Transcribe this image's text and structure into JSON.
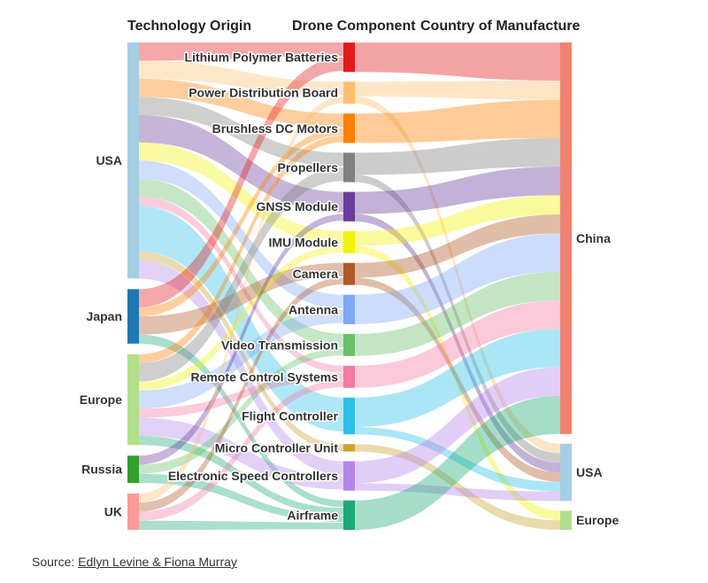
{
  "chart_data": {
    "type": "sankey",
    "columns": [
      "Technology Origin",
      "Drone Component",
      "Country of Manufacture"
    ],
    "origins": [
      {
        "name": "USA",
        "color": "#a6cee3"
      },
      {
        "name": "Japan",
        "color": "#1f78b4"
      },
      {
        "name": "Europe",
        "color": "#b2df8a"
      },
      {
        "name": "Russia",
        "color": "#33a02c"
      },
      {
        "name": "UK",
        "color": "#fb9a99"
      }
    ],
    "components": [
      {
        "name": "Lithium Polymer Batteries",
        "color": "#e31a1c"
      },
      {
        "name": "Power Distribution Board",
        "color": "#fdbf6f"
      },
      {
        "name": "Brushless DC Motors",
        "color": "#ff7f00"
      },
      {
        "name": "Propellers",
        "color": "#808080"
      },
      {
        "name": "GNSS Module",
        "color": "#6a3d9a"
      },
      {
        "name": "IMU Module",
        "color": "#f2f20a"
      },
      {
        "name": "Camera",
        "color": "#b15928"
      },
      {
        "name": "Antenna",
        "color": "#7fa8f5"
      },
      {
        "name": "Video Transmission",
        "color": "#6abf69"
      },
      {
        "name": "Remote Control Systems",
        "color": "#f37aa5"
      },
      {
        "name": "Flight Controller",
        "color": "#2ec0e8"
      },
      {
        "name": "Micro Controller Unit",
        "color": "#c8a431"
      },
      {
        "name": "Electronic Speed Controllers",
        "color": "#b485e8"
      },
      {
        "name": "Airframe",
        "color": "#1daa78"
      }
    ],
    "countries": [
      {
        "name": "China",
        "color": "#f08070"
      },
      {
        "name": "USA",
        "color": "#a6cee3"
      },
      {
        "name": "Europe",
        "color": "#b2df8a"
      }
    ],
    "flows_origin_to_component": [
      {
        "source": "USA",
        "target": "Lithium Polymer Batteries",
        "value": 2
      },
      {
        "source": "USA",
        "target": "Power Distribution Board",
        "value": 2
      },
      {
        "source": "USA",
        "target": "Brushless DC Motors",
        "value": 2
      },
      {
        "source": "USA",
        "target": "Propellers",
        "value": 2
      },
      {
        "source": "USA",
        "target": "GNSS Module",
        "value": 3
      },
      {
        "source": "USA",
        "target": "IMU Module",
        "value": 2
      },
      {
        "source": "USA",
        "target": "Antenna",
        "value": 2
      },
      {
        "source": "USA",
        "target": "Video Transmission",
        "value": 2
      },
      {
        "source": "USA",
        "target": "Remote Control Systems",
        "value": 1
      },
      {
        "source": "USA",
        "target": "Flight Controller",
        "value": 5
      },
      {
        "source": "USA",
        "target": "Micro Controller Unit",
        "value": 1
      },
      {
        "source": "USA",
        "target": "Electronic Speed Controllers",
        "value": 2
      },
      {
        "source": "Japan",
        "target": "Lithium Polymer Batteries",
        "value": 2
      },
      {
        "source": "Japan",
        "target": "Brushless DC Motors",
        "value": 1
      },
      {
        "source": "Japan",
        "target": "Camera",
        "value": 2
      },
      {
        "source": "Japan",
        "target": "Airframe",
        "value": 1
      },
      {
        "source": "Europe",
        "target": "Brushless DC Motors",
        "value": 1
      },
      {
        "source": "Europe",
        "target": "Propellers",
        "value": 2
      },
      {
        "source": "Europe",
        "target": "IMU Module",
        "value": 1
      },
      {
        "source": "Europe",
        "target": "Antenna",
        "value": 2
      },
      {
        "source": "Europe",
        "target": "Remote Control Systems",
        "value": 1
      },
      {
        "source": "Europe",
        "target": "Electronic Speed Controllers",
        "value": 2
      },
      {
        "source": "Europe",
        "target": "Airframe",
        "value": 1
      },
      {
        "source": "Russia",
        "target": "GNSS Module",
        "value": 1
      },
      {
        "source": "Russia",
        "target": "Video Transmission",
        "value": 1
      },
      {
        "source": "Russia",
        "target": "Airframe",
        "value": 1
      },
      {
        "source": "UK",
        "target": "Power Distribution Board",
        "value": 1
      },
      {
        "source": "UK",
        "target": "Camera",
        "value": 1
      },
      {
        "source": "UK",
        "target": "Remote Control Systems",
        "value": 1
      },
      {
        "source": "UK",
        "target": "Airframe",
        "value": 1
      }
    ],
    "flows_component_to_country": [
      {
        "source": "Lithium Polymer Batteries",
        "target": "China",
        "value": 4
      },
      {
        "source": "Power Distribution Board",
        "target": "China",
        "value": 2
      },
      {
        "source": "Power Distribution Board",
        "target": "USA",
        "value": 1
      },
      {
        "source": "Brushless DC Motors",
        "target": "China",
        "value": 4
      },
      {
        "source": "Propellers",
        "target": "China",
        "value": 3
      },
      {
        "source": "Propellers",
        "target": "USA",
        "value": 1
      },
      {
        "source": "GNSS Module",
        "target": "China",
        "value": 3
      },
      {
        "source": "GNSS Module",
        "target": "USA",
        "value": 1
      },
      {
        "source": "IMU Module",
        "target": "China",
        "value": 2
      },
      {
        "source": "IMU Module",
        "target": "Europe",
        "value": 1
      },
      {
        "source": "Camera",
        "target": "China",
        "value": 2
      },
      {
        "source": "Camera",
        "target": "USA",
        "value": 1
      },
      {
        "source": "Antenna",
        "target": "China",
        "value": 4
      },
      {
        "source": "Video Transmission",
        "target": "China",
        "value": 3
      },
      {
        "source": "Remote Control Systems",
        "target": "China",
        "value": 3
      },
      {
        "source": "Flight Controller",
        "target": "China",
        "value": 4
      },
      {
        "source": "Flight Controller",
        "target": "USA",
        "value": 1
      },
      {
        "source": "Micro Controller Unit",
        "target": "Europe",
        "value": 1
      },
      {
        "source": "Electronic Speed Controllers",
        "target": "China",
        "value": 3
      },
      {
        "source": "Electronic Speed Controllers",
        "target": "USA",
        "value": 1
      },
      {
        "source": "Airframe",
        "target": "China",
        "value": 4
      }
    ]
  },
  "source": {
    "prefix": "Source: ",
    "link_text": "Edlyn Levine & Fiona Murray"
  }
}
